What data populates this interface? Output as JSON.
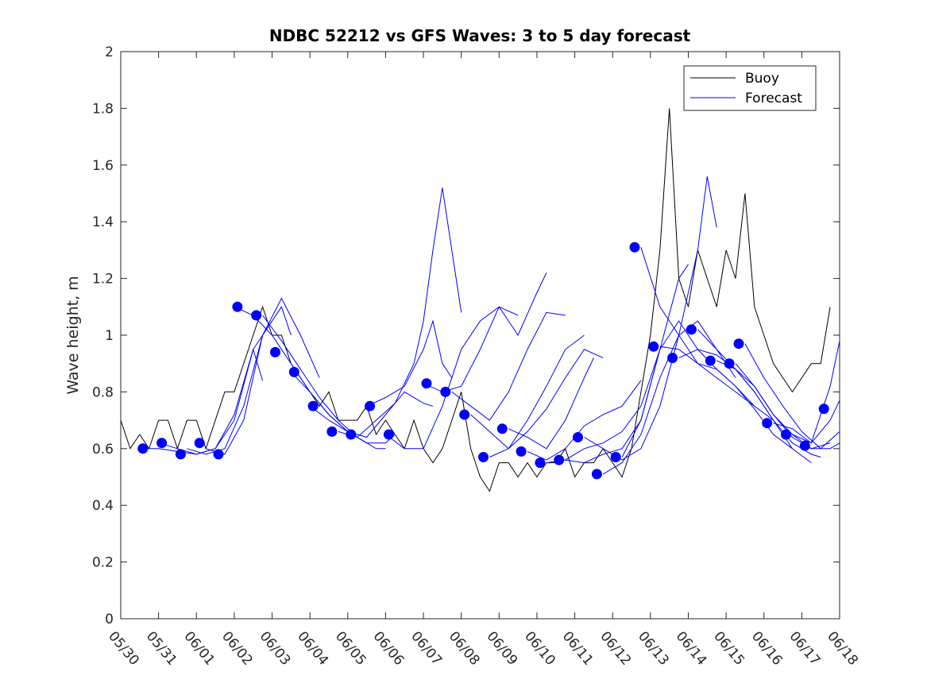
{
  "chart_data": {
    "type": "line",
    "title": "NDBC 52212 vs GFS Waves: 3 to 5 day forecast",
    "ylabel": "Wave height, m",
    "xlabel": "",
    "xlim": [
      "05/30",
      "06/18"
    ],
    "ylim": [
      0,
      2
    ],
    "x_tick_labels": [
      "05/30",
      "05/31",
      "06/01",
      "06/02",
      "06/03",
      "06/04",
      "06/05",
      "06/06",
      "06/07",
      "06/08",
      "06/09",
      "06/10",
      "06/11",
      "06/12",
      "06/13",
      "06/14",
      "06/15",
      "06/16",
      "06/17",
      "06/18"
    ],
    "y_ticks": [
      0,
      0.2,
      0.4,
      0.6,
      0.8,
      1,
      1.2,
      1.4,
      1.6,
      1.8,
      2
    ],
    "y_tick_labels": [
      "0",
      "0.2",
      "0.4",
      "0.6",
      "0.8",
      "1",
      "1.2",
      "1.4",
      "1.6",
      "1.8",
      "2"
    ],
    "legend": {
      "position": "top-right",
      "entries": [
        "Buoy",
        "Forecast"
      ]
    },
    "colors": {
      "buoy": "#000000",
      "forecast": "#0000ff",
      "markers": "#0000ff"
    },
    "series": [
      {
        "name": "Buoy",
        "x": [
          "05/30 00:00",
          "05/30 06:00",
          "05/30 12:00",
          "05/30 18:00",
          "05/31 00:00",
          "05/31 06:00",
          "05/31 12:00",
          "05/31 18:00",
          "06/01 00:00",
          "06/01 06:00",
          "06/01 12:00",
          "06/01 18:00",
          "06/02 00:00",
          "06/02 06:00",
          "06/02 12:00",
          "06/02 18:00",
          "06/03 00:00",
          "06/03 06:00",
          "06/03 12:00",
          "06/03 18:00",
          "06/04 00:00",
          "06/04 06:00",
          "06/04 12:00",
          "06/04 18:00",
          "06/05 00:00",
          "06/05 06:00",
          "06/05 12:00",
          "06/05 18:00",
          "06/06 00:00",
          "06/06 06:00",
          "06/06 12:00",
          "06/06 18:00",
          "06/07 00:00",
          "06/07 06:00",
          "06/07 12:00",
          "06/07 18:00",
          "06/08 00:00",
          "06/08 06:00",
          "06/08 12:00",
          "06/08 18:00",
          "06/09 00:00",
          "06/09 06:00",
          "06/09 12:00",
          "06/09 18:00",
          "06/10 00:00",
          "06/10 06:00",
          "06/10 12:00",
          "06/10 18:00",
          "06/11 00:00",
          "06/11 06:00",
          "06/11 12:00",
          "06/11 18:00",
          "06/12 00:00",
          "06/12 06:00",
          "06/12 12:00",
          "06/12 18:00",
          "06/13 00:00",
          "06/13 06:00",
          "06/13 12:00",
          "06/13 18:00",
          "06/14 00:00",
          "06/14 06:00",
          "06/14 12:00",
          "06/14 18:00",
          "06/15 00:00",
          "06/15 06:00",
          "06/15 12:00",
          "06/15 18:00",
          "06/16 00:00",
          "06/16 06:00",
          "06/16 12:00",
          "06/16 18:00",
          "06/17 00:00",
          "06/17 06:00",
          "06/17 12:00",
          "06/17 18:00"
        ],
        "values": [
          0.7,
          0.6,
          0.65,
          0.6,
          0.7,
          0.7,
          0.6,
          0.7,
          0.7,
          0.6,
          0.7,
          0.8,
          0.8,
          0.9,
          1.0,
          1.1,
          1.0,
          1.0,
          0.9,
          0.85,
          0.8,
          0.75,
          0.8,
          0.7,
          0.7,
          0.7,
          0.75,
          0.65,
          0.7,
          0.65,
          0.6,
          0.7,
          0.6,
          0.55,
          0.6,
          0.7,
          0.8,
          0.6,
          0.5,
          0.45,
          0.55,
          0.55,
          0.5,
          0.55,
          0.5,
          0.55,
          0.55,
          0.6,
          0.5,
          0.55,
          0.55,
          0.6,
          0.55,
          0.5,
          0.6,
          0.8,
          1.0,
          1.3,
          1.8,
          1.2,
          1.1,
          1.3,
          1.2,
          1.1,
          1.3,
          1.2,
          1.5,
          1.1,
          1.0,
          0.9,
          0.85,
          0.8,
          0.85,
          0.9,
          0.9,
          1.1
        ]
      },
      {
        "name": "Forecast",
        "x": [
          "05/30 12:00",
          "05/31 00:00",
          "05/31 12:00",
          "06/01 00:00",
          "06/01 12:00",
          "06/02 00:00",
          "06/02 12:00",
          "06/02 18:00"
        ],
        "values": [
          0.6,
          0.6,
          0.59,
          0.58,
          0.6,
          0.72,
          0.95,
          0.84
        ]
      },
      {
        "x": [
          "05/31 00:00",
          "05/31 12:00",
          "06/01 00:00",
          "06/01 12:00",
          "06/02 00:00",
          "06/02 12:00",
          "06/03 00:00"
        ],
        "values": [
          0.62,
          0.6,
          0.58,
          0.6,
          0.7,
          0.95,
          1.05
        ]
      },
      {
        "x": [
          "05/31 18:00",
          "06/01 06:00",
          "06/01 18:00",
          "06/02 06:00",
          "06/02 18:00",
          "06/03 06:00",
          "06/03 12:00"
        ],
        "values": [
          0.6,
          0.58,
          0.6,
          0.75,
          1.0,
          1.1,
          1.0
        ]
      },
      {
        "x": [
          "06/01 06:00",
          "06/01 18:00",
          "06/02 06:00",
          "06/02 18:00",
          "06/03 06:00",
          "06/03 18:00",
          "06/04 06:00"
        ],
        "values": [
          0.6,
          0.58,
          0.7,
          1.0,
          1.13,
          1.0,
          0.85
        ]
      },
      {
        "x": [
          "06/02 00:00",
          "06/02 12:00",
          "06/03 00:00",
          "06/03 12:00",
          "06/04 00:00",
          "06/04 12:00",
          "06/05 00:00",
          "06/05 12:00"
        ],
        "values": [
          1.1,
          1.07,
          1.0,
          0.9,
          0.8,
          0.72,
          0.66,
          0.62
        ]
      },
      {
        "x": [
          "06/02 18:00",
          "06/03 06:00",
          "06/03 18:00",
          "06/04 06:00",
          "06/04 18:00",
          "06/05 06:00",
          "06/05 18:00",
          "06/06 00:00"
        ],
        "values": [
          1.07,
          0.98,
          0.88,
          0.78,
          0.7,
          0.64,
          0.6,
          0.6
        ]
      },
      {
        "x": [
          "06/03 12:00",
          "06/04 00:00",
          "06/04 12:00",
          "06/05 00:00",
          "06/05 12:00",
          "06/06 00:00",
          "06/06 06:00"
        ],
        "values": [
          0.87,
          0.8,
          0.72,
          0.66,
          0.62,
          0.62,
          0.65
        ]
      },
      {
        "x": [
          "06/04 00:00",
          "06/04 12:00",
          "06/05 00:00",
          "06/05 12:00",
          "06/06 00:00",
          "06/06 12:00",
          "06/07 00:00",
          "06/07 06:00"
        ],
        "values": [
          0.75,
          0.7,
          0.66,
          0.64,
          0.72,
          0.8,
          0.76,
          0.75
        ]
      },
      {
        "x": [
          "06/04 18:00",
          "06/05 06:00",
          "06/05 18:00",
          "06/06 06:00",
          "06/06 18:00",
          "06/07 00:00",
          "06/07 06:00",
          "06/07 12:00",
          "06/07 18:00",
          "06/08 00:00"
        ],
        "values": [
          0.66,
          0.64,
          0.7,
          0.76,
          0.9,
          1.05,
          1.3,
          1.52,
          1.3,
          1.08
        ]
      },
      {
        "x": [
          "06/05 12:00",
          "06/06 00:00",
          "06/06 12:00",
          "06/07 00:00",
          "06/07 06:00",
          "06/07 12:00",
          "06/07 18:00"
        ],
        "values": [
          0.75,
          0.78,
          0.82,
          0.95,
          1.05,
          0.9,
          0.85
        ]
      },
      {
        "x": [
          "06/06 00:00",
          "06/06 12:00",
          "06/07 00:00",
          "06/07 12:00",
          "06/08 00:00",
          "06/08 12:00",
          "06/09 00:00",
          "06/09 12:00"
        ],
        "values": [
          0.65,
          0.6,
          0.6,
          0.75,
          0.95,
          1.05,
          1.1,
          1.07
        ]
      },
      {
        "x": [
          "06/07 00:00",
          "06/07 12:00",
          "06/08 00:00",
          "06/08 12:00",
          "06/09 00:00",
          "06/09 12:00",
          "06/10 00:00",
          "06/10 06:00"
        ],
        "values": [
          0.83,
          0.8,
          0.82,
          0.95,
          1.1,
          1.0,
          1.15,
          1.22
        ]
      },
      {
        "x": [
          "06/07 18:00",
          "06/08 06:00",
          "06/08 18:00",
          "06/09 06:00",
          "06/09 18:00",
          "06/10 06:00",
          "06/10 18:00"
        ],
        "values": [
          0.8,
          0.75,
          0.7,
          0.8,
          0.95,
          1.08,
          1.07
        ]
      },
      {
        "x": [
          "06/08 06:00",
          "06/08 18:00",
          "06/09 06:00",
          "06/09 18:00",
          "06/10 06:00",
          "06/10 18:00",
          "06/11 06:00"
        ],
        "values": [
          0.72,
          0.66,
          0.6,
          0.7,
          0.82,
          0.95,
          1.0
        ]
      },
      {
        "x": [
          "06/08 18:00",
          "06/09 06:00",
          "06/09 18:00",
          "06/10 06:00",
          "06/10 18:00",
          "06/11 06:00",
          "06/11 18:00"
        ],
        "values": [
          0.57,
          0.6,
          0.66,
          0.74,
          0.85,
          0.95,
          0.92
        ]
      },
      {
        "x": [
          "06/09 06:00",
          "06/09 18:00",
          "06/10 06:00",
          "06/10 18:00",
          "06/11 06:00",
          "06/11 12:00"
        ],
        "values": [
          0.67,
          0.64,
          0.6,
          0.7,
          0.85,
          0.92
        ]
      },
      {
        "x": [
          "06/09 18:00",
          "06/10 06:00",
          "06/10 18:00",
          "06/11 06:00",
          "06/11 18:00",
          "06/12 06:00",
          "06/12 18:00"
        ],
        "values": [
          0.59,
          0.56,
          0.6,
          0.68,
          0.72,
          0.75,
          0.84
        ]
      },
      {
        "x": [
          "06/10 06:00",
          "06/10 18:00",
          "06/11 06:00",
          "06/11 18:00",
          "06/12 06:00",
          "06/12 18:00",
          "06/13 06:00"
        ],
        "values": [
          0.55,
          0.56,
          0.6,
          0.62,
          0.66,
          0.75,
          0.95
        ]
      },
      {
        "x": [
          "06/10 18:00",
          "06/11 06:00",
          "06/11 18:00",
          "06/12 06:00",
          "06/12 18:00",
          "06/13 06:00",
          "06/13 18:00",
          "06/14 00:00"
        ],
        "values": [
          0.56,
          0.55,
          0.58,
          0.6,
          0.7,
          0.95,
          1.2,
          1.25
        ]
      },
      {
        "x": [
          "06/11 06:00",
          "06/11 18:00",
          "06/12 06:00",
          "06/12 18:00",
          "06/13 06:00",
          "06/13 18:00",
          "06/14 06:00",
          "06/14 12:00",
          "06/14 18:00"
        ],
        "values": [
          0.64,
          0.6,
          0.56,
          0.6,
          0.75,
          1.0,
          1.3,
          1.56,
          1.38
        ]
      },
      {
        "x": [
          "06/11 18:00",
          "06/12 06:00",
          "06/12 18:00",
          "06/13 06:00",
          "06/13 18:00",
          "06/14 06:00",
          "06/14 18:00",
          "06/15 06:00"
        ],
        "values": [
          0.51,
          0.55,
          0.65,
          0.85,
          1.0,
          1.05,
          0.95,
          0.85
        ]
      },
      {
        "x": [
          "06/12 06:00",
          "06/12 18:00",
          "06/13 06:00",
          "06/13 18:00",
          "06/14 06:00",
          "06/14 18:00",
          "06/15 06:00",
          "06/15 18:00"
        ],
        "values": [
          0.57,
          0.7,
          0.95,
          1.05,
          0.95,
          0.88,
          0.82,
          0.75
        ]
      },
      {
        "x": [
          "06/12 18:00",
          "06/13 06:00",
          "06/13 18:00",
          "06/14 06:00",
          "06/14 18:00",
          "06/15 06:00",
          "06/15 18:00",
          "06/16 06:00"
        ],
        "values": [
          1.31,
          1.1,
          1.0,
          0.9,
          0.85,
          0.8,
          0.75,
          0.7
        ]
      },
      {
        "x": [
          "06/13 06:00",
          "06/13 18:00",
          "06/14 06:00",
          "06/14 18:00",
          "06/15 06:00",
          "06/15 18:00",
          "06/16 06:00",
          "06/16 18:00"
        ],
        "values": [
          0.96,
          0.95,
          0.9,
          0.88,
          0.82,
          0.74,
          0.65,
          0.6
        ]
      },
      {
        "x": [
          "06/13 18:00",
          "06/14 06:00",
          "06/14 18:00",
          "06/15 06:00",
          "06/15 18:00",
          "06/16 06:00",
          "06/16 18:00",
          "06/17 06:00"
        ],
        "values": [
          0.92,
          0.95,
          0.93,
          0.88,
          0.8,
          0.7,
          0.6,
          0.55
        ]
      },
      {
        "x": [
          "06/14 06:00",
          "06/14 18:00",
          "06/15 06:00",
          "06/15 18:00",
          "06/16 06:00",
          "06/16 18:00",
          "06/17 06:00",
          "06/17 12:00"
        ],
        "values": [
          1.02,
          0.95,
          0.88,
          0.8,
          0.7,
          0.62,
          0.58,
          0.57
        ]
      },
      {
        "x": [
          "06/14 18:00",
          "06/15 06:00",
          "06/15 18:00",
          "06/16 06:00",
          "06/16 18:00",
          "06/17 06:00",
          "06/17 18:00"
        ],
        "values": [
          0.91,
          0.88,
          0.82,
          0.72,
          0.64,
          0.6,
          0.62
        ]
      },
      {
        "x": [
          "06/15 06:00",
          "06/15 18:00",
          "06/16 06:00",
          "06/16 18:00",
          "06/17 06:00",
          "06/17 18:00",
          "06/18 00:00"
        ],
        "values": [
          0.9,
          0.82,
          0.72,
          0.65,
          0.6,
          0.6,
          0.62
        ]
      },
      {
        "x": [
          "06/15 12:00",
          "06/16 00:00",
          "06/16 12:00",
          "06/17 00:00",
          "06/17 12:00",
          "06/18 00:00"
        ],
        "values": [
          0.97,
          0.85,
          0.75,
          0.66,
          0.6,
          0.66
        ]
      },
      {
        "x": [
          "06/16 06:00",
          "06/16 18:00",
          "06/17 06:00",
          "06/17 18:00",
          "06/18 00:00"
        ],
        "values": [
          0.69,
          0.67,
          0.62,
          0.7,
          0.77
        ]
      },
      {
        "x": [
          "06/16 18:00",
          "06/17 06:00",
          "06/17 18:00",
          "06/18 00:00"
        ],
        "values": [
          0.65,
          0.62,
          0.82,
          0.98
        ]
      }
    ],
    "markers": {
      "x": [
        "05/30 14:00",
        "05/31 02:00",
        "05/31 14:00",
        "06/01 02:00",
        "06/01 14:00",
        "06/02 02:00",
        "06/02 14:00",
        "06/03 02:00",
        "06/03 14:00",
        "06/04 02:00",
        "06/04 14:00",
        "06/05 02:00",
        "06/05 14:00",
        "06/06 02:00",
        "06/07 02:00",
        "06/07 14:00",
        "06/08 02:00",
        "06/08 14:00",
        "06/09 02:00",
        "06/09 14:00",
        "06/10 02:00",
        "06/10 14:00",
        "06/11 02:00",
        "06/11 14:00",
        "06/12 02:00",
        "06/12 14:00",
        "06/13 02:00",
        "06/13 14:00",
        "06/14 02:00",
        "06/14 14:00",
        "06/15 02:00",
        "06/15 08:00",
        "06/16 02:00",
        "06/16 14:00",
        "06/17 02:00",
        "06/17 14:00"
      ],
      "values": [
        0.6,
        0.62,
        0.58,
        0.62,
        0.58,
        1.1,
        1.07,
        0.94,
        0.87,
        0.75,
        0.66,
        0.65,
        0.75,
        0.65,
        0.83,
        0.8,
        0.72,
        0.57,
        0.67,
        0.59,
        0.55,
        0.56,
        0.64,
        0.51,
        0.57,
        1.31,
        0.96,
        0.92,
        1.02,
        0.91,
        0.9,
        0.97,
        0.69,
        0.65,
        0.61,
        0.74
      ]
    }
  }
}
